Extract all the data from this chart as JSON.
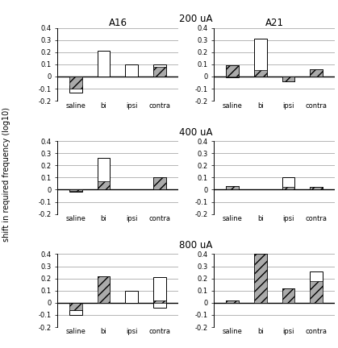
{
  "title_200": "200 uA",
  "title_400": "400 uA",
  "title_800": "800 uA",
  "rat1_label": "A16",
  "rat2_label": "A21",
  "categories": [
    "saline",
    "bi",
    "ipsi",
    "contra"
  ],
  "ylabel": "shift in required frequency (log10)",
  "ylim": [
    -0.2,
    0.4
  ],
  "yticks": [
    -0.2,
    -0.1,
    0.0,
    0.1,
    0.2,
    0.3,
    0.4
  ],
  "A16_200_bar": [
    -0.1,
    0.0,
    0.0,
    0.08
  ],
  "A16_200_wlo": [
    -0.13,
    0.0,
    0.0,
    0.02
  ],
  "A16_200_whi": [
    -0.07,
    0.21,
    0.1,
    0.1
  ],
  "A21_200_bar": [
    0.09,
    0.05,
    -0.04,
    0.06
  ],
  "A21_200_wlo": [
    -0.01,
    0.0,
    -0.04,
    0.0
  ],
  "A21_200_whi": [
    0.09,
    0.31,
    0.0,
    0.06
  ],
  "A16_400_bar": [
    -0.01,
    0.07,
    0.0,
    0.1
  ],
  "A16_400_wlo": [
    -0.02,
    0.0,
    0.0,
    0.0
  ],
  "A16_400_whi": [
    0.0,
    0.26,
    0.0,
    0.1
  ],
  "A21_400_bar": [
    0.03,
    0.0,
    0.02,
    0.02
  ],
  "A21_400_wlo": [
    0.0,
    0.0,
    0.0,
    0.0
  ],
  "A21_400_whi": [
    0.03,
    0.0,
    0.1,
    0.02
  ],
  "A16_800_bar": [
    -0.06,
    0.22,
    0.0,
    0.02
  ],
  "A16_800_wlo": [
    -0.1,
    0.1,
    0.0,
    -0.04
  ],
  "A16_800_whi": [
    -0.06,
    0.22,
    0.1,
    0.21
  ],
  "A21_800_bar": [
    0.02,
    0.4,
    0.12,
    0.18
  ],
  "A21_800_wlo": [
    0.0,
    0.17,
    0.06,
    0.12
  ],
  "A21_800_whi": [
    0.02,
    0.4,
    0.12,
    0.26
  ],
  "bar_color": "#aaaaaa",
  "hatch": "///",
  "box_color": "white",
  "box_edge": "black",
  "fig_bg": "white",
  "grid_color": "#999999"
}
